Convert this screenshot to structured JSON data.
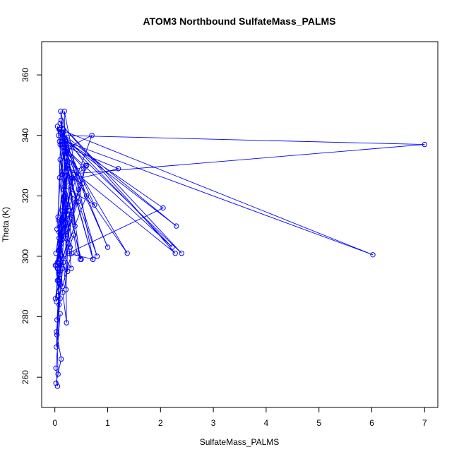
{
  "chart_data": {
    "type": "line",
    "title": "ATOM3 Northbound SulfateMass_PALMS",
    "xlabel": "SulfateMass_PALMS",
    "ylabel": "Theta (K)",
    "xlim": [
      -0.25,
      7.25
    ],
    "ylim": [
      250,
      371
    ],
    "x_ticks": [
      0,
      1,
      2,
      3,
      4,
      5,
      6,
      7
    ],
    "y_ticks": [
      260,
      280,
      300,
      320,
      340,
      360
    ],
    "x_tick_labels": [
      "0",
      "1",
      "2",
      "3",
      "4",
      "5",
      "6",
      "7"
    ],
    "y_tick_labels": [
      "260",
      "280",
      "300",
      "320",
      "340",
      "360"
    ],
    "series_color": "#0000ff",
    "marker": "open-circle",
    "grid": false,
    "series": [
      {
        "x": [
          0.05,
          0.02,
          0.1,
          0.03,
          0.08,
          0.01,
          0.12,
          0.04,
          0.15,
          0.06,
          0.2,
          0.03,
          0.18,
          0.07,
          0.25,
          0.02,
          0.1,
          0.3,
          0.05,
          0.14,
          0.22,
          0.08,
          0.35,
          0.04,
          0.16,
          0.28,
          0.06,
          0.12,
          0.4,
          0.09,
          0.19,
          0.33,
          0.05,
          0.24,
          0.11,
          0.45,
          0.07,
          0.17,
          0.38,
          0.13,
          0.52,
          0.08,
          0.21,
          0.29,
          0.1,
          0.48,
          0.15,
          0.6,
          0.06,
          0.26,
          0.7,
          0.12,
          0.34,
          0.09,
          0.55,
          0.18,
          0.75,
          0.08,
          1.0,
          0.2,
          0.8,
          0.3,
          1.2,
          0.1,
          0.72,
          0.25,
          2.05,
          0.15,
          2.3,
          0.12,
          2.22,
          0.18,
          1.37,
          0.22,
          2.28,
          0.1,
          2.4,
          0.2,
          6.02,
          0.09,
          0.6,
          0.14,
          7.0,
          0.07,
          0.72,
          0.18,
          0.22,
          0.15,
          0.05,
          0.08,
          0.03,
          0.12,
          0.02,
          0.06,
          0.04,
          0.1,
          0.01,
          0.09,
          0.05,
          0.03,
          0.07,
          0.11,
          0.16,
          0.21,
          0.27,
          0.32,
          0.14,
          0.08,
          0.19,
          0.24,
          0.13,
          0.36,
          0.42,
          0.5,
          0.17,
          0.23,
          0.31,
          0.11,
          0.44,
          0.58,
          0.2,
          0.09
        ],
        "y": [
          257,
          263,
          281,
          270,
          291,
          286,
          300,
          279,
          296,
          287,
          311,
          297,
          320,
          292,
          329,
          301,
          305,
          323,
          298,
          315,
          334,
          299,
          327,
          309,
          342,
          331,
          313,
          345,
          318,
          294,
          337,
          326,
          343,
          314,
          348,
          322,
          302,
          339,
          310,
          328,
          324,
          306,
          316,
          303,
          332,
          299,
          341,
          320,
          296,
          336,
          340,
          312,
          319,
          338,
          329,
          323,
          317,
          342,
          303,
          335,
          300,
          325,
          329,
          337,
          299,
          301,
          316,
          339,
          310,
          341,
          303,
          336,
          301,
          330,
          301,
          344,
          301,
          338,
          300.5,
          342,
          330,
          327,
          337,
          340,
          299,
          348,
          278,
          288,
          296,
          284,
          275,
          266,
          258,
          261,
          274,
          286,
          297,
          304,
          292,
          285,
          312,
          305,
          298,
          289,
          315,
          301,
          290,
          308,
          319,
          295,
          297,
          307,
          301,
          299,
          322,
          309,
          296,
          302,
          318,
          330,
          306,
          326
        ]
      }
    ]
  }
}
